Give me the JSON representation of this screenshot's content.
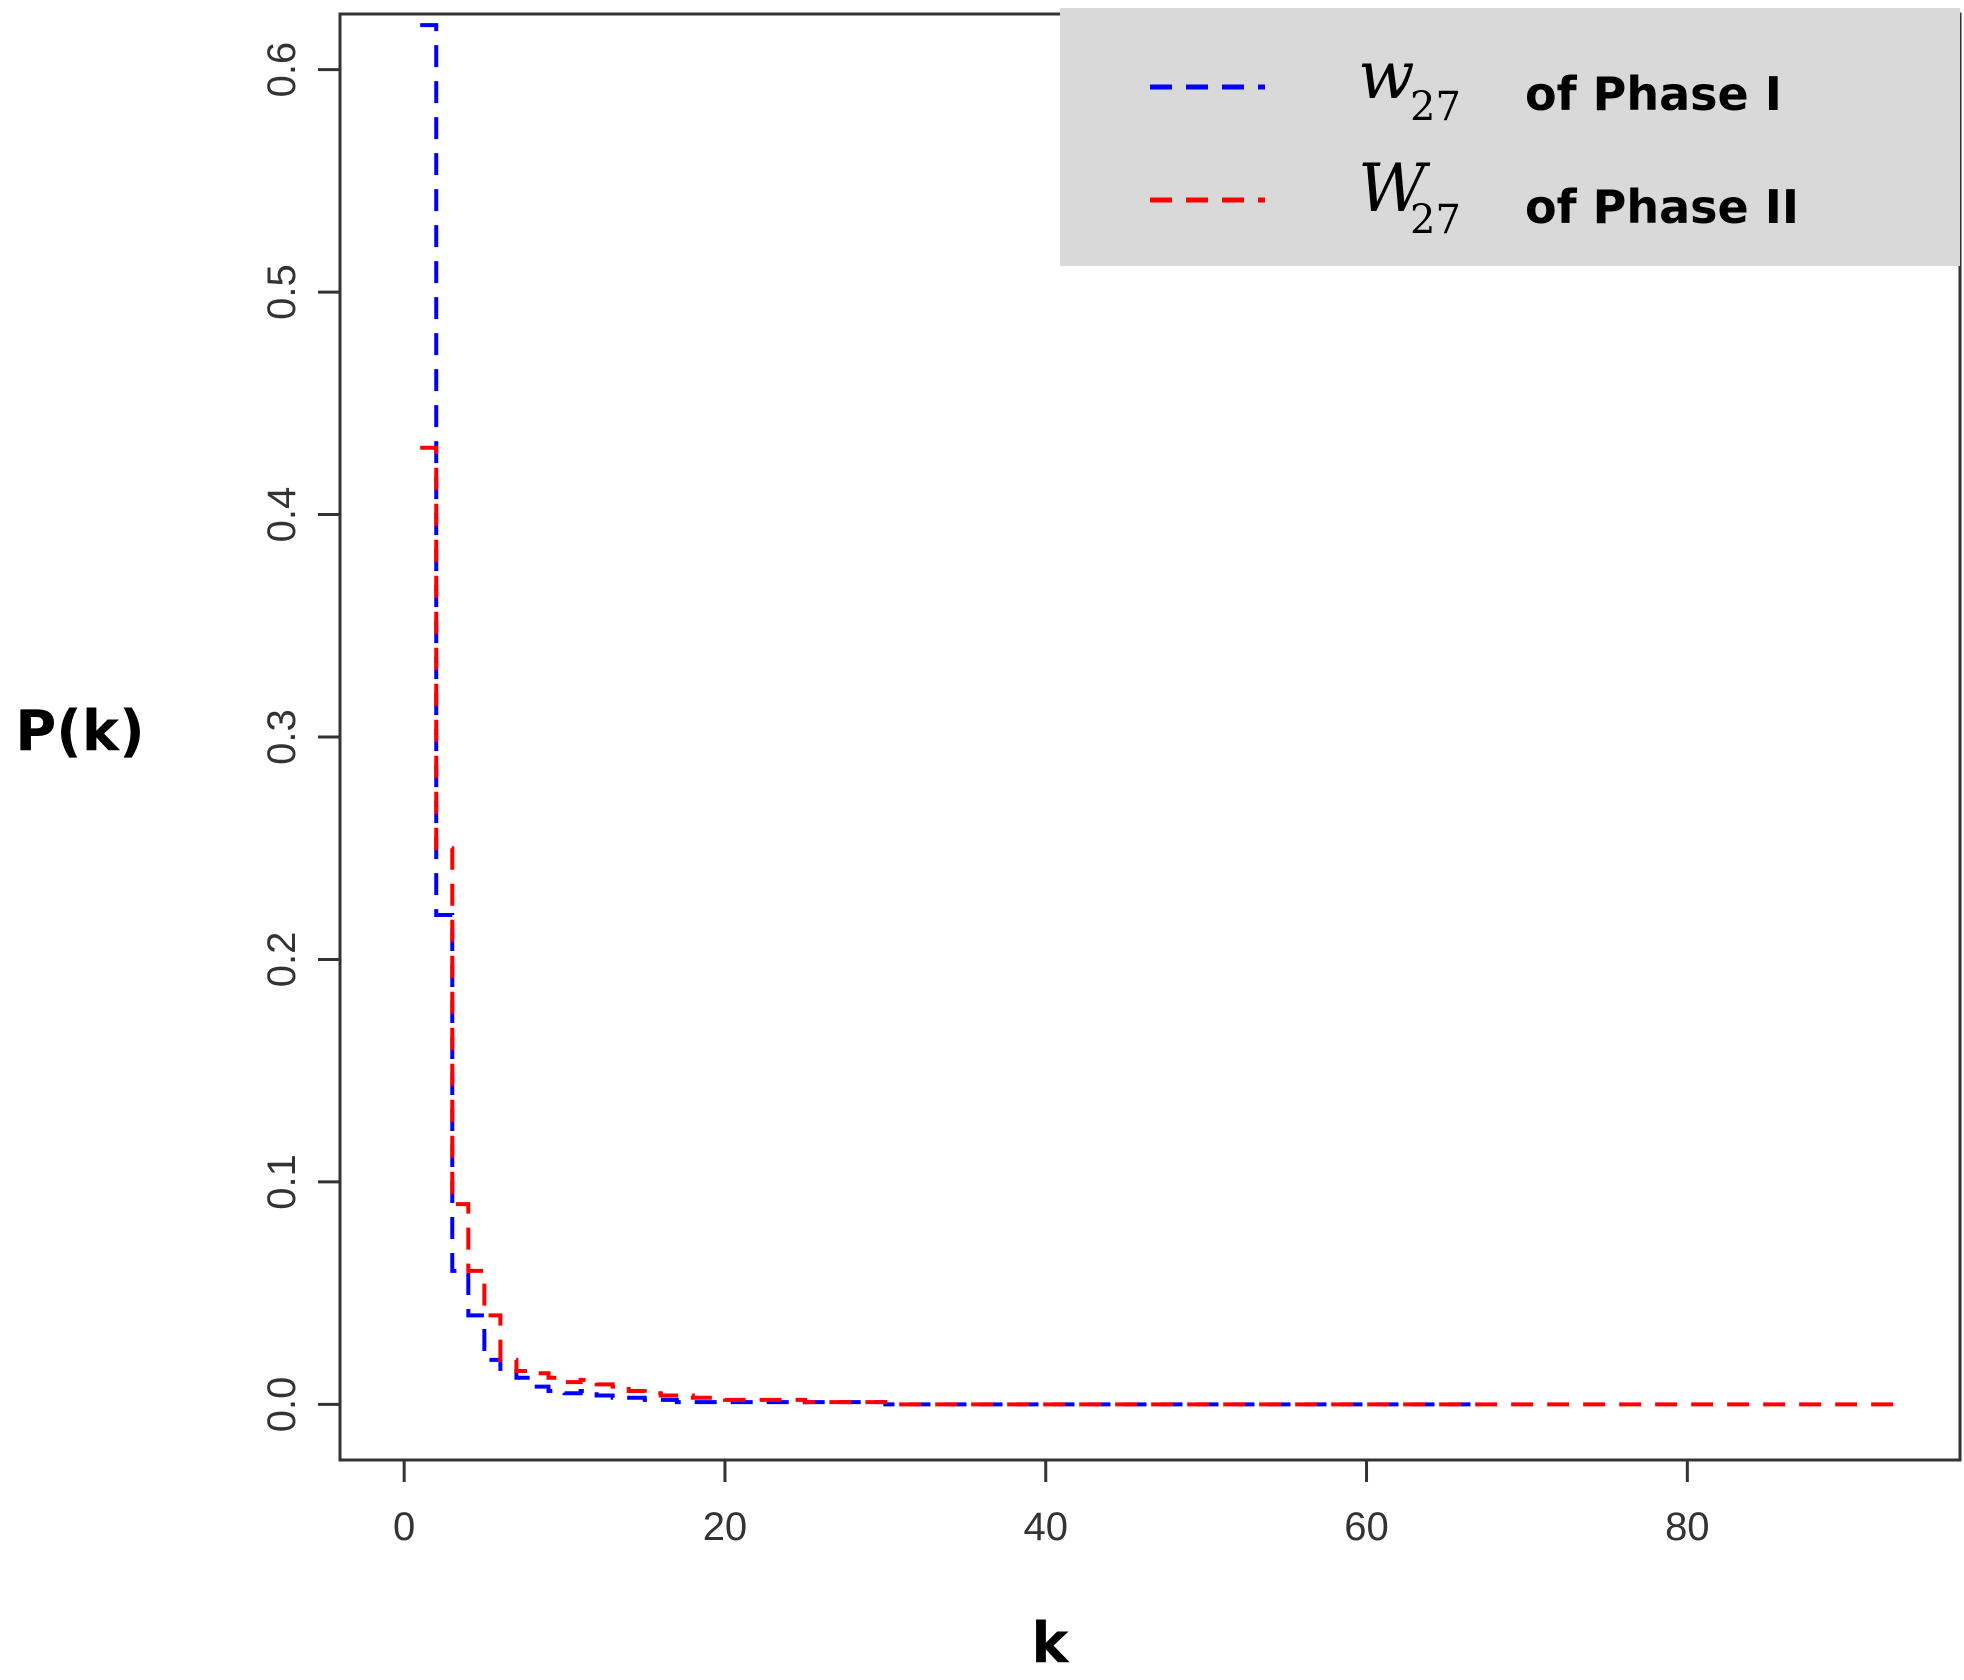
{
  "chart_data": {
    "type": "line",
    "xlabel": "k",
    "ylabel": "P(k)",
    "xlim": [
      -4,
      97
    ],
    "ylim": [
      -0.025,
      0.625
    ],
    "x_ticks": [
      "0",
      "20",
      "40",
      "60",
      "80"
    ],
    "x_tick_values": [
      0,
      20,
      40,
      60,
      80
    ],
    "y_ticks": [
      "0.0",
      "0.1",
      "0.2",
      "0.3",
      "0.4",
      "0.5",
      "0.6"
    ],
    "y_tick_values": [
      0.0,
      0.1,
      0.2,
      0.3,
      0.4,
      0.5,
      0.6
    ],
    "grid": false,
    "legend_position": "top-right",
    "series": [
      {
        "name_symbol": "w",
        "name_subscript": "27",
        "name_suffix": "of Phase I",
        "color": "#0000ff",
        "line_style": "dashed",
        "x": [
          1,
          2,
          3,
          4,
          5,
          6,
          7,
          8,
          9,
          10,
          11,
          12,
          13,
          14,
          15,
          16,
          17,
          18,
          20,
          25,
          30,
          40,
          50,
          60,
          67
        ],
        "y": [
          0.62,
          0.22,
          0.06,
          0.04,
          0.02,
          0.015,
          0.012,
          0.008,
          0.006,
          0.005,
          0.006,
          0.004,
          0.003,
          0.003,
          0.002,
          0.002,
          0.001,
          0.001,
          0.001,
          0.001,
          0.0,
          0.0,
          0.0,
          0.0,
          0.0
        ]
      },
      {
        "name_symbol": "W",
        "name_subscript": "27",
        "name_suffix": "of Phase II",
        "color": "#ff0000",
        "line_style": "dashed",
        "x": [
          1,
          2,
          3,
          4,
          5,
          6,
          7,
          8,
          9,
          10,
          11,
          12,
          13,
          14,
          15,
          16,
          18,
          19,
          20,
          22,
          25,
          28,
          30,
          40,
          50,
          60,
          70,
          80,
          93
        ],
        "y": [
          0.43,
          0.25,
          0.09,
          0.06,
          0.04,
          0.02,
          0.015,
          0.014,
          0.012,
          0.01,
          0.011,
          0.009,
          0.008,
          0.006,
          0.005,
          0.004,
          0.003,
          0.003,
          0.002,
          0.002,
          0.001,
          0.001,
          0.0,
          0.0,
          0.0,
          0.0,
          0.0,
          0.0,
          0.0
        ]
      }
    ],
    "legend_box_color": "#d9d9d9"
  }
}
